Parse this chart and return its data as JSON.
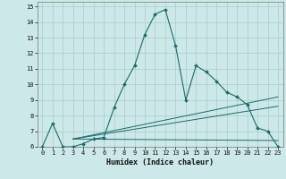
{
  "xlabel": "Humidex (Indice chaleur)",
  "bg_color": "#cce8e8",
  "grid_color": "#aacccc",
  "line_color": "#1a6b6b",
  "xlim": [
    -0.5,
    23.5
  ],
  "ylim": [
    6,
    15.3
  ],
  "xticks": [
    0,
    1,
    2,
    3,
    4,
    5,
    6,
    7,
    8,
    9,
    10,
    11,
    12,
    13,
    14,
    15,
    16,
    17,
    18,
    19,
    20,
    21,
    22,
    23
  ],
  "yticks": [
    6,
    7,
    8,
    9,
    10,
    11,
    12,
    13,
    14,
    15
  ],
  "line1_x": [
    0,
    1,
    2,
    3,
    4,
    5,
    6,
    7,
    8,
    9,
    10,
    11,
    12,
    13,
    14,
    15,
    16,
    17,
    18,
    19,
    20,
    21,
    22,
    23
  ],
  "line1_y": [
    6.0,
    7.5,
    6.0,
    6.0,
    6.2,
    6.5,
    6.6,
    8.5,
    10.0,
    11.2,
    13.2,
    14.5,
    14.8,
    12.5,
    9.0,
    11.2,
    10.8,
    10.2,
    9.5,
    9.2,
    8.7,
    7.2,
    7.0,
    6.0
  ],
  "line2_x": [
    3,
    23
  ],
  "line2_y": [
    6.5,
    9.2
  ],
  "line3_x": [
    3,
    23
  ],
  "line3_y": [
    6.5,
    8.6
  ],
  "line4_x": [
    3,
    23
  ],
  "line4_y": [
    6.5,
    6.4
  ],
  "tick_fontsize": 5.0,
  "xlabel_fontsize": 6.0
}
